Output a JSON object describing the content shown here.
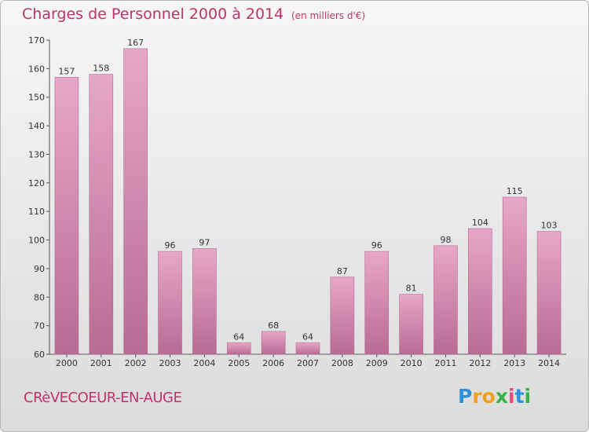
{
  "chart_data": {
    "type": "bar",
    "title": "Charges de Personnel 2000 à 2014",
    "subtitle": "(en milliers d'€)",
    "categories": [
      "2000",
      "2001",
      "2002",
      "2003",
      "2004",
      "2005",
      "2006",
      "2007",
      "2008",
      "2009",
      "2010",
      "2011",
      "2012",
      "2013",
      "2014"
    ],
    "values": [
      157,
      158,
      167,
      96,
      97,
      64,
      68,
      64,
      87,
      96,
      81,
      98,
      104,
      115,
      103
    ],
    "ylim": [
      60,
      170
    ],
    "yticks": [
      60,
      70,
      80,
      90,
      100,
      110,
      120,
      130,
      140,
      150,
      160,
      170
    ],
    "grid": false,
    "bar_color": "#d98ab3"
  },
  "commune": "CRèVECOEUR-EN-AUGE",
  "logo": {
    "letters": [
      "P",
      "r",
      "o",
      "x",
      "i",
      "t",
      "i"
    ],
    "colors": [
      "#2f8fd8",
      "#f0a020",
      "#f0a020",
      "#3ab04a",
      "#e84a7a",
      "#2f8fd8",
      "#3ab04a"
    ]
  }
}
